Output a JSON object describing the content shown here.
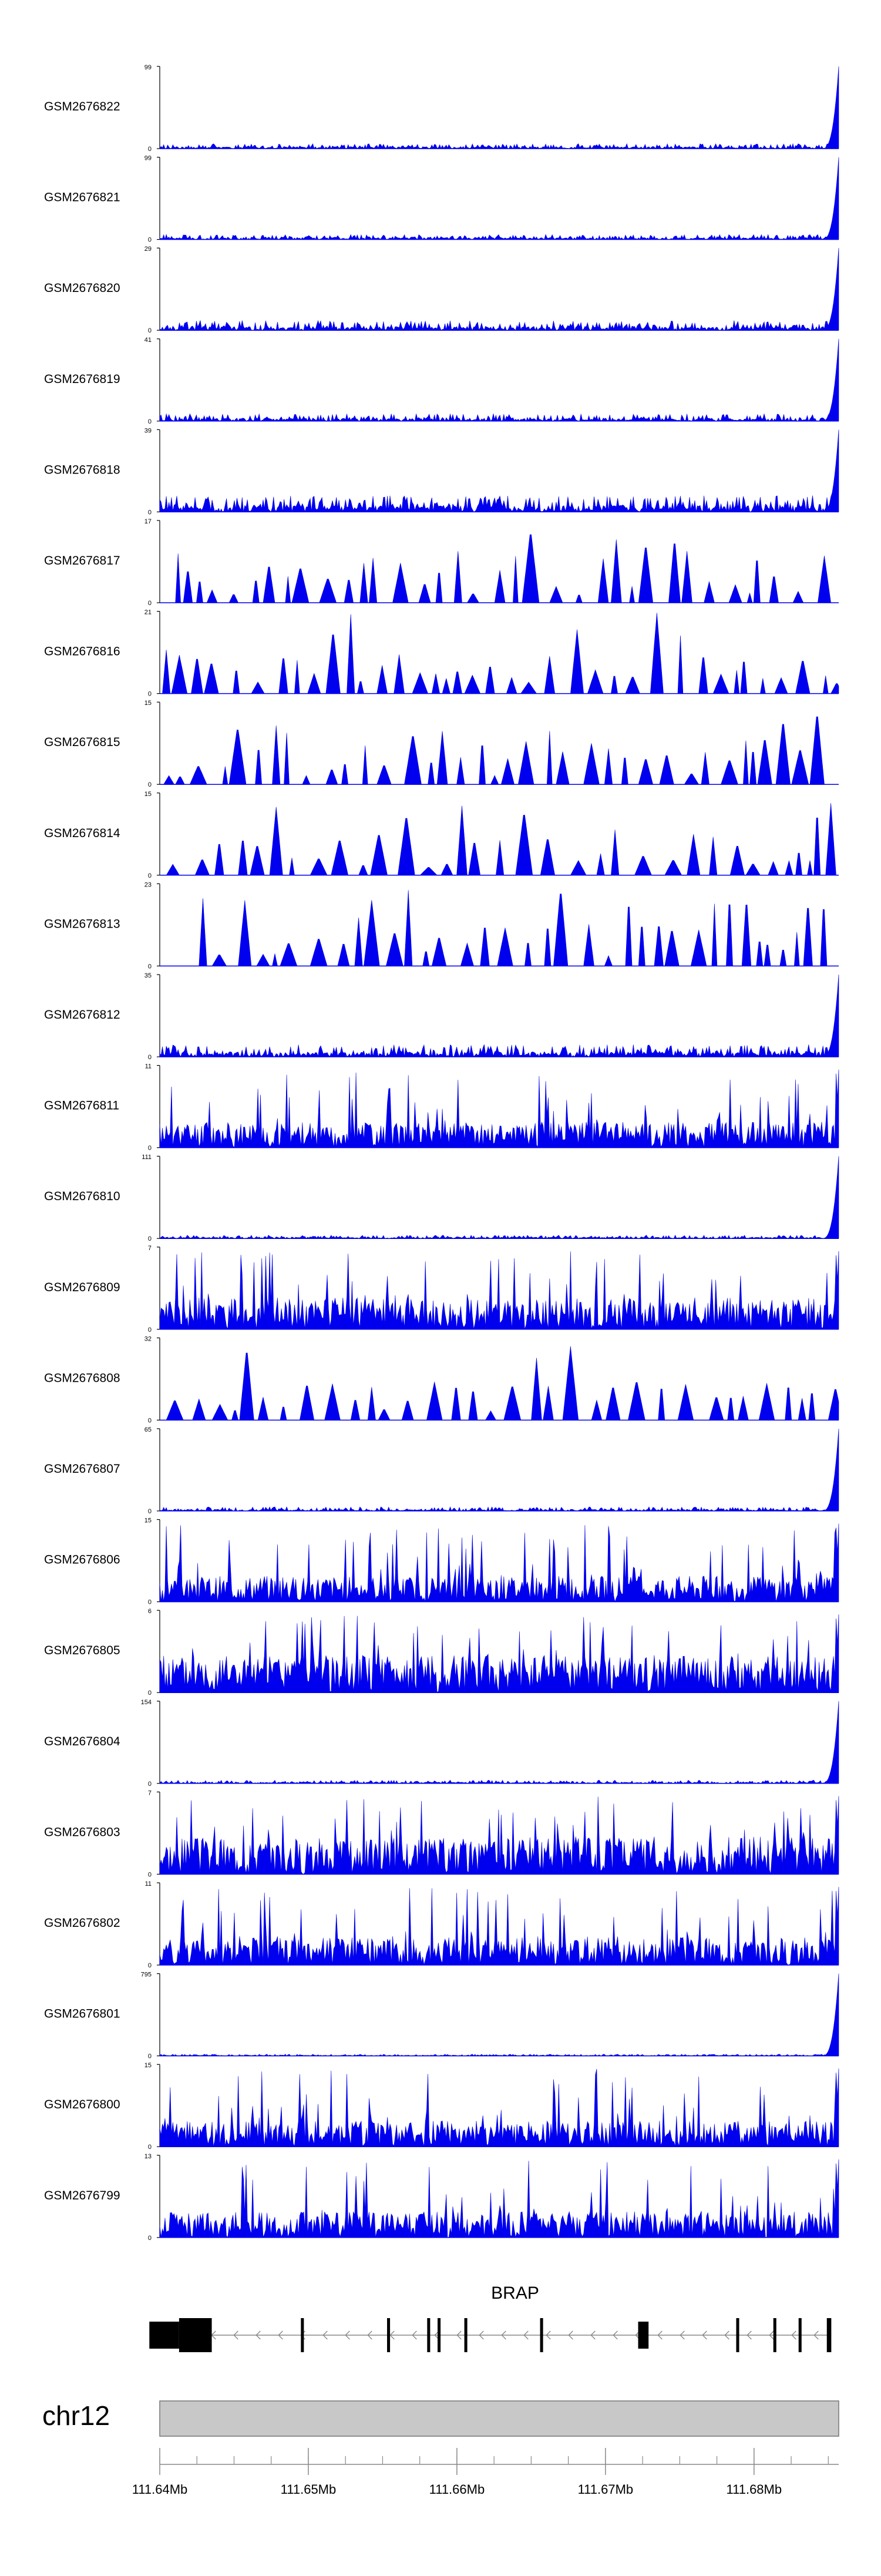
{
  "chart_data": {
    "type": "area",
    "color": "#0000ee",
    "axis_color": "#000000",
    "tracks": [
      {
        "name": "GSM2676822",
        "ymax": "99",
        "ymin": "0",
        "profile": "spike_end",
        "level": 0.06,
        "seed": 22
      },
      {
        "name": "GSM2676821",
        "ymax": "99",
        "ymin": "0",
        "profile": "spike_end",
        "level": 0.06,
        "seed": 21
      },
      {
        "name": "GSM2676820",
        "ymax": "29",
        "ymin": "0",
        "profile": "spike_end",
        "level": 0.12,
        "seed": 20
      },
      {
        "name": "GSM2676819",
        "ymax": "41",
        "ymin": "0",
        "profile": "spike_end",
        "level": 0.09,
        "seed": 19
      },
      {
        "name": "GSM2676818",
        "ymax": "39",
        "ymin": "0",
        "profile": "spike_end",
        "level": 0.2,
        "seed": 18
      },
      {
        "name": "GSM2676817",
        "ymax": "17",
        "ymin": "0",
        "profile": "sparse",
        "level": 0.55,
        "seed": 17
      },
      {
        "name": "GSM2676816",
        "ymax": "21",
        "ymin": "0",
        "profile": "sparse",
        "level": 0.45,
        "seed": 16
      },
      {
        "name": "GSM2676815",
        "ymax": "15",
        "ymin": "0",
        "profile": "sparse",
        "level": 0.55,
        "seed": 15
      },
      {
        "name": "GSM2676814",
        "ymax": "15",
        "ymin": "0",
        "profile": "sparse",
        "level": 0.5,
        "seed": 14
      },
      {
        "name": "GSM2676813",
        "ymax": "23",
        "ymin": "0",
        "profile": "sparse_gap",
        "level": 0.5,
        "seed": 13
      },
      {
        "name": "GSM2676812",
        "ymax": "35",
        "ymin": "0",
        "profile": "spike_end",
        "level": 0.15,
        "seed": 12
      },
      {
        "name": "GSM2676811",
        "ymax": "11",
        "ymin": "0",
        "profile": "dense",
        "level": 0.45,
        "seed": 11
      },
      {
        "name": "GSM2676810",
        "ymax": "111",
        "ymin": "0",
        "profile": "spike_end",
        "level": 0.04,
        "seed": 10
      },
      {
        "name": "GSM2676809",
        "ymax": "7",
        "ymin": "0",
        "profile": "dense",
        "level": 0.55,
        "seed": 9
      },
      {
        "name": "GSM2676808",
        "ymax": "32",
        "ymin": "0",
        "profile": "sparse",
        "level": 0.4,
        "seed": 8
      },
      {
        "name": "GSM2676807",
        "ymax": "65",
        "ymin": "0",
        "profile": "spike_end",
        "level": 0.05,
        "seed": 7
      },
      {
        "name": "GSM2676806",
        "ymax": "15",
        "ymin": "0",
        "profile": "dense",
        "level": 0.45,
        "seed": 6
      },
      {
        "name": "GSM2676805",
        "ymax": "6",
        "ymin": "0",
        "profile": "dense",
        "level": 0.65,
        "seed": 5
      },
      {
        "name": "GSM2676804",
        "ymax": "154",
        "ymin": "0",
        "profile": "spike_end",
        "level": 0.04,
        "seed": 4
      },
      {
        "name": "GSM2676803",
        "ymax": "7",
        "ymin": "0",
        "profile": "dense",
        "level": 0.65,
        "seed": 3
      },
      {
        "name": "GSM2676802",
        "ymax": "11",
        "ymin": "0",
        "profile": "dense",
        "level": 0.5,
        "seed": 2
      },
      {
        "name": "GSM2676801",
        "ymax": "795",
        "ymin": "0",
        "profile": "spike_end",
        "level": 0.02,
        "seed": 1
      },
      {
        "name": "GSM2676800",
        "ymax": "15",
        "ymin": "0",
        "profile": "dense",
        "level": 0.45,
        "seed": 100
      },
      {
        "name": "GSM2676799",
        "ymax": "13",
        "ymin": "0",
        "profile": "dense",
        "level": 0.45,
        "seed": 99
      }
    ],
    "gene": {
      "name": "BRAP",
      "strand": "-",
      "start_mb": 111.6393,
      "end_mb": 111.6852,
      "exons_mb": [
        [
          111.6393,
          111.6413
        ],
        [
          111.6413,
          111.6435
        ],
        [
          111.6495,
          111.6497
        ],
        [
          111.6553,
          111.6555
        ],
        [
          111.658,
          111.6582
        ],
        [
          111.6587,
          111.6589
        ],
        [
          111.6605,
          111.6607
        ],
        [
          111.6656,
          111.6658
        ],
        [
          111.6722,
          111.6729
        ],
        [
          111.6788,
          111.679
        ],
        [
          111.6813,
          111.6815
        ],
        [
          111.683,
          111.6832
        ],
        [
          111.6849,
          111.6852
        ]
      ]
    },
    "chromosome": {
      "label": "chr12",
      "range_mb": [
        111.64,
        111.6857
      ],
      "ticks": [
        "111.64Mb",
        "111.65Mb",
        "111.66Mb",
        "111.67Mb",
        "111.68Mb"
      ],
      "tick_values_mb": [
        111.64,
        111.65,
        111.66,
        111.67,
        111.68
      ],
      "band_color": "#c8c8c8"
    }
  }
}
